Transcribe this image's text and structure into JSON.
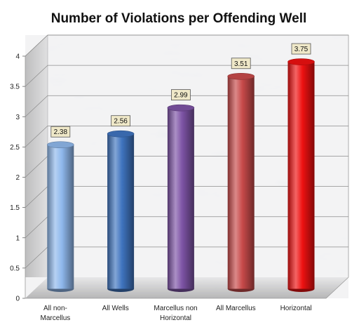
{
  "chart_data": {
    "type": "bar",
    "title": "Number of Violations per Offending Well",
    "xlabel": "",
    "ylabel": "",
    "ylim": [
      0,
      4
    ],
    "yticks": [
      "0",
      "0.5",
      "1",
      "1.5",
      "2",
      "2.5",
      "3",
      "3.5",
      "4"
    ],
    "categories": [
      [
        "All non-",
        "Marcellus"
      ],
      [
        "All Wells"
      ],
      [
        "Marcellus non",
        "Horizontal"
      ],
      [
        "All Marcellus"
      ],
      [
        "Horizontal"
      ]
    ],
    "values": [
      2.38,
      2.56,
      2.99,
      3.51,
      3.75
    ],
    "data_labels": [
      "2.38",
      "2.56",
      "2.99",
      "3.51",
      "3.75"
    ],
    "colors": [
      "#8fb8ec",
      "#3f74bf",
      "#7d53a5",
      "#c84a4a",
      "#ee1111"
    ],
    "grid": true,
    "legend": "none",
    "style": "3d-cylinder",
    "background": "marble"
  }
}
